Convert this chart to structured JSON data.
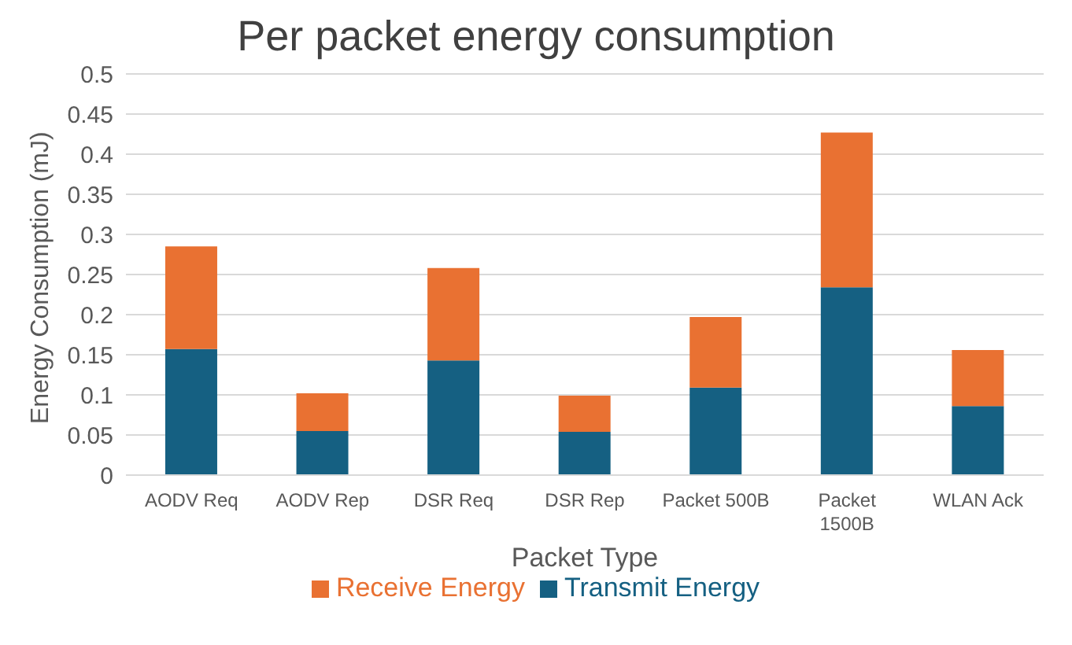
{
  "chart_data": {
    "type": "bar",
    "title": "Per packet energy consumption",
    "xlabel": "Packet Type",
    "ylabel": "Energy Consumption (mJ)",
    "categories": [
      "AODV Req",
      "AODV Rep",
      "DSR Req",
      "DSR Rep",
      "Packet 500B",
      "Packet 1500B",
      "WLAN Ack"
    ],
    "series": [
      {
        "name": "Transmit Energy",
        "color": "#156082",
        "values": [
          0.157,
          0.055,
          0.143,
          0.054,
          0.109,
          0.234,
          0.086
        ]
      },
      {
        "name": "Receive Energy",
        "color": "#e97132",
        "values": [
          0.128,
          0.047,
          0.115,
          0.045,
          0.088,
          0.193,
          0.07
        ]
      }
    ],
    "stacked": true,
    "ylim": [
      0,
      0.5
    ],
    "yticks": [
      0,
      0.05,
      0.1,
      0.15,
      0.2,
      0.25,
      0.3,
      0.35,
      0.4,
      0.45,
      0.5
    ],
    "grid": "y",
    "legend": "bottom"
  }
}
